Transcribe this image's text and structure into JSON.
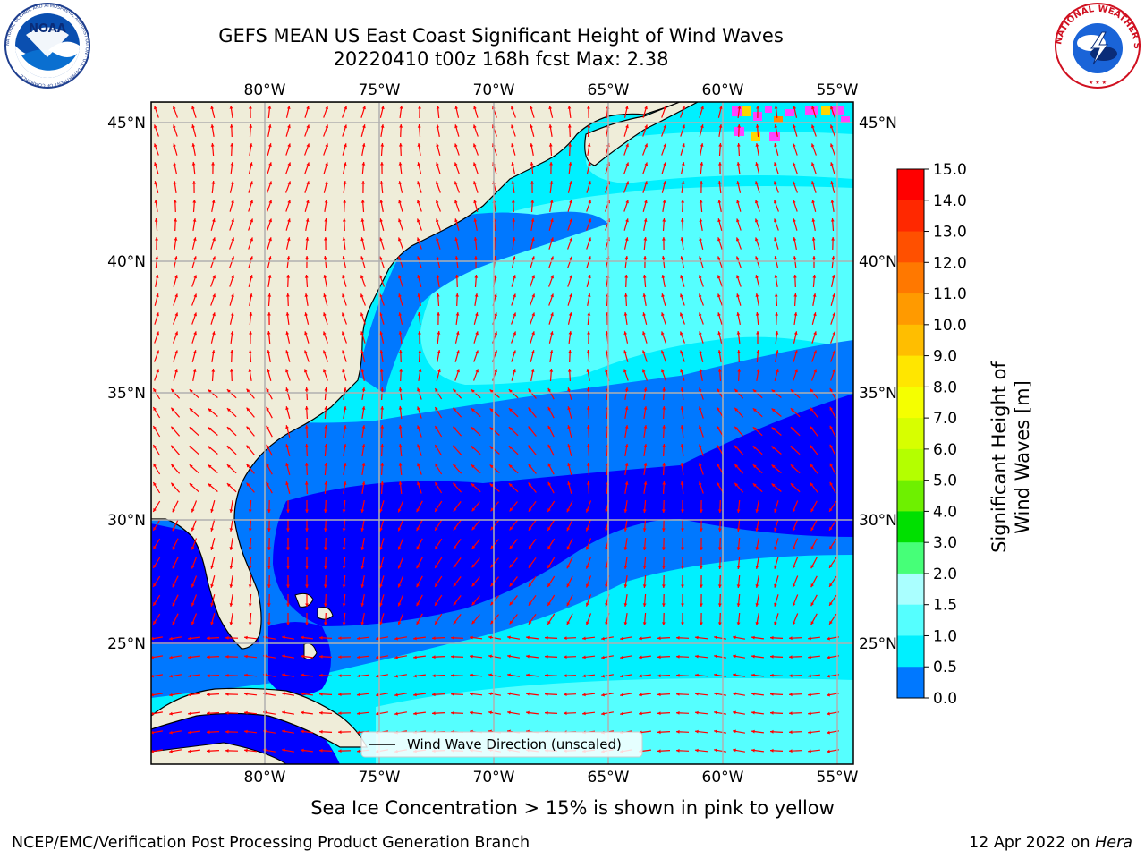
{
  "header": {
    "title_line1": "GEFS MEAN US East Coast Significant Height of Wind Waves",
    "title_line2": "20220410 t00z 168h fcst   Max: 2.38"
  },
  "logos": {
    "left": "NOAA",
    "left_ring": "NATIONAL OCEANIC AND ATMOSPHERIC ADMINISTRATION · U.S. DEPARTMENT OF COMMERCE",
    "right_ring": "NATIONAL WEATHER SERVICE"
  },
  "map": {
    "lon_ticks": [
      "80°W",
      "75°W",
      "70°W",
      "65°W",
      "60°W",
      "55°W"
    ],
    "lat_ticks": [
      "45°N",
      "40°N",
      "35°N",
      "30°N",
      "25°N"
    ],
    "legend_label": "Wind Wave Direction (unscaled)",
    "colors": {
      "land": "#efedd9",
      "coast": "#000000",
      "grid": "#b0b0b0",
      "arrow": "#ff0000"
    }
  },
  "colorbar": {
    "label": "Significant Height of Wind Waves [m]",
    "ticks": [
      "15.0",
      "14.0",
      "13.0",
      "12.0",
      "11.0",
      "10.0",
      "9.0",
      "8.0",
      "7.0",
      "6.0",
      "5.0",
      "4.0",
      "3.0",
      "2.0",
      "1.5",
      "1.0",
      "0.5",
      "0.0"
    ],
    "colors": [
      "#ff0000",
      "#ff2800",
      "#ff5000",
      "#ff7800",
      "#ff9a00",
      "#ffbe00",
      "#ffe600",
      "#f5ff00",
      "#d7ff00",
      "#b4ff00",
      "#6ef000",
      "#00e000",
      "#46ff78",
      "#aaffff",
      "#55ffff",
      "#00f0ff",
      "#0078ff",
      "#0000ff"
    ]
  },
  "footer": {
    "note": "Sea Ice Concentration > 15% is shown in pink to yellow",
    "credit_left": "NCEP/EMC/Verification Post Processing Product Generation Branch",
    "credit_right_date": "12 Apr 2022 on ",
    "credit_right_system": "Hera"
  }
}
